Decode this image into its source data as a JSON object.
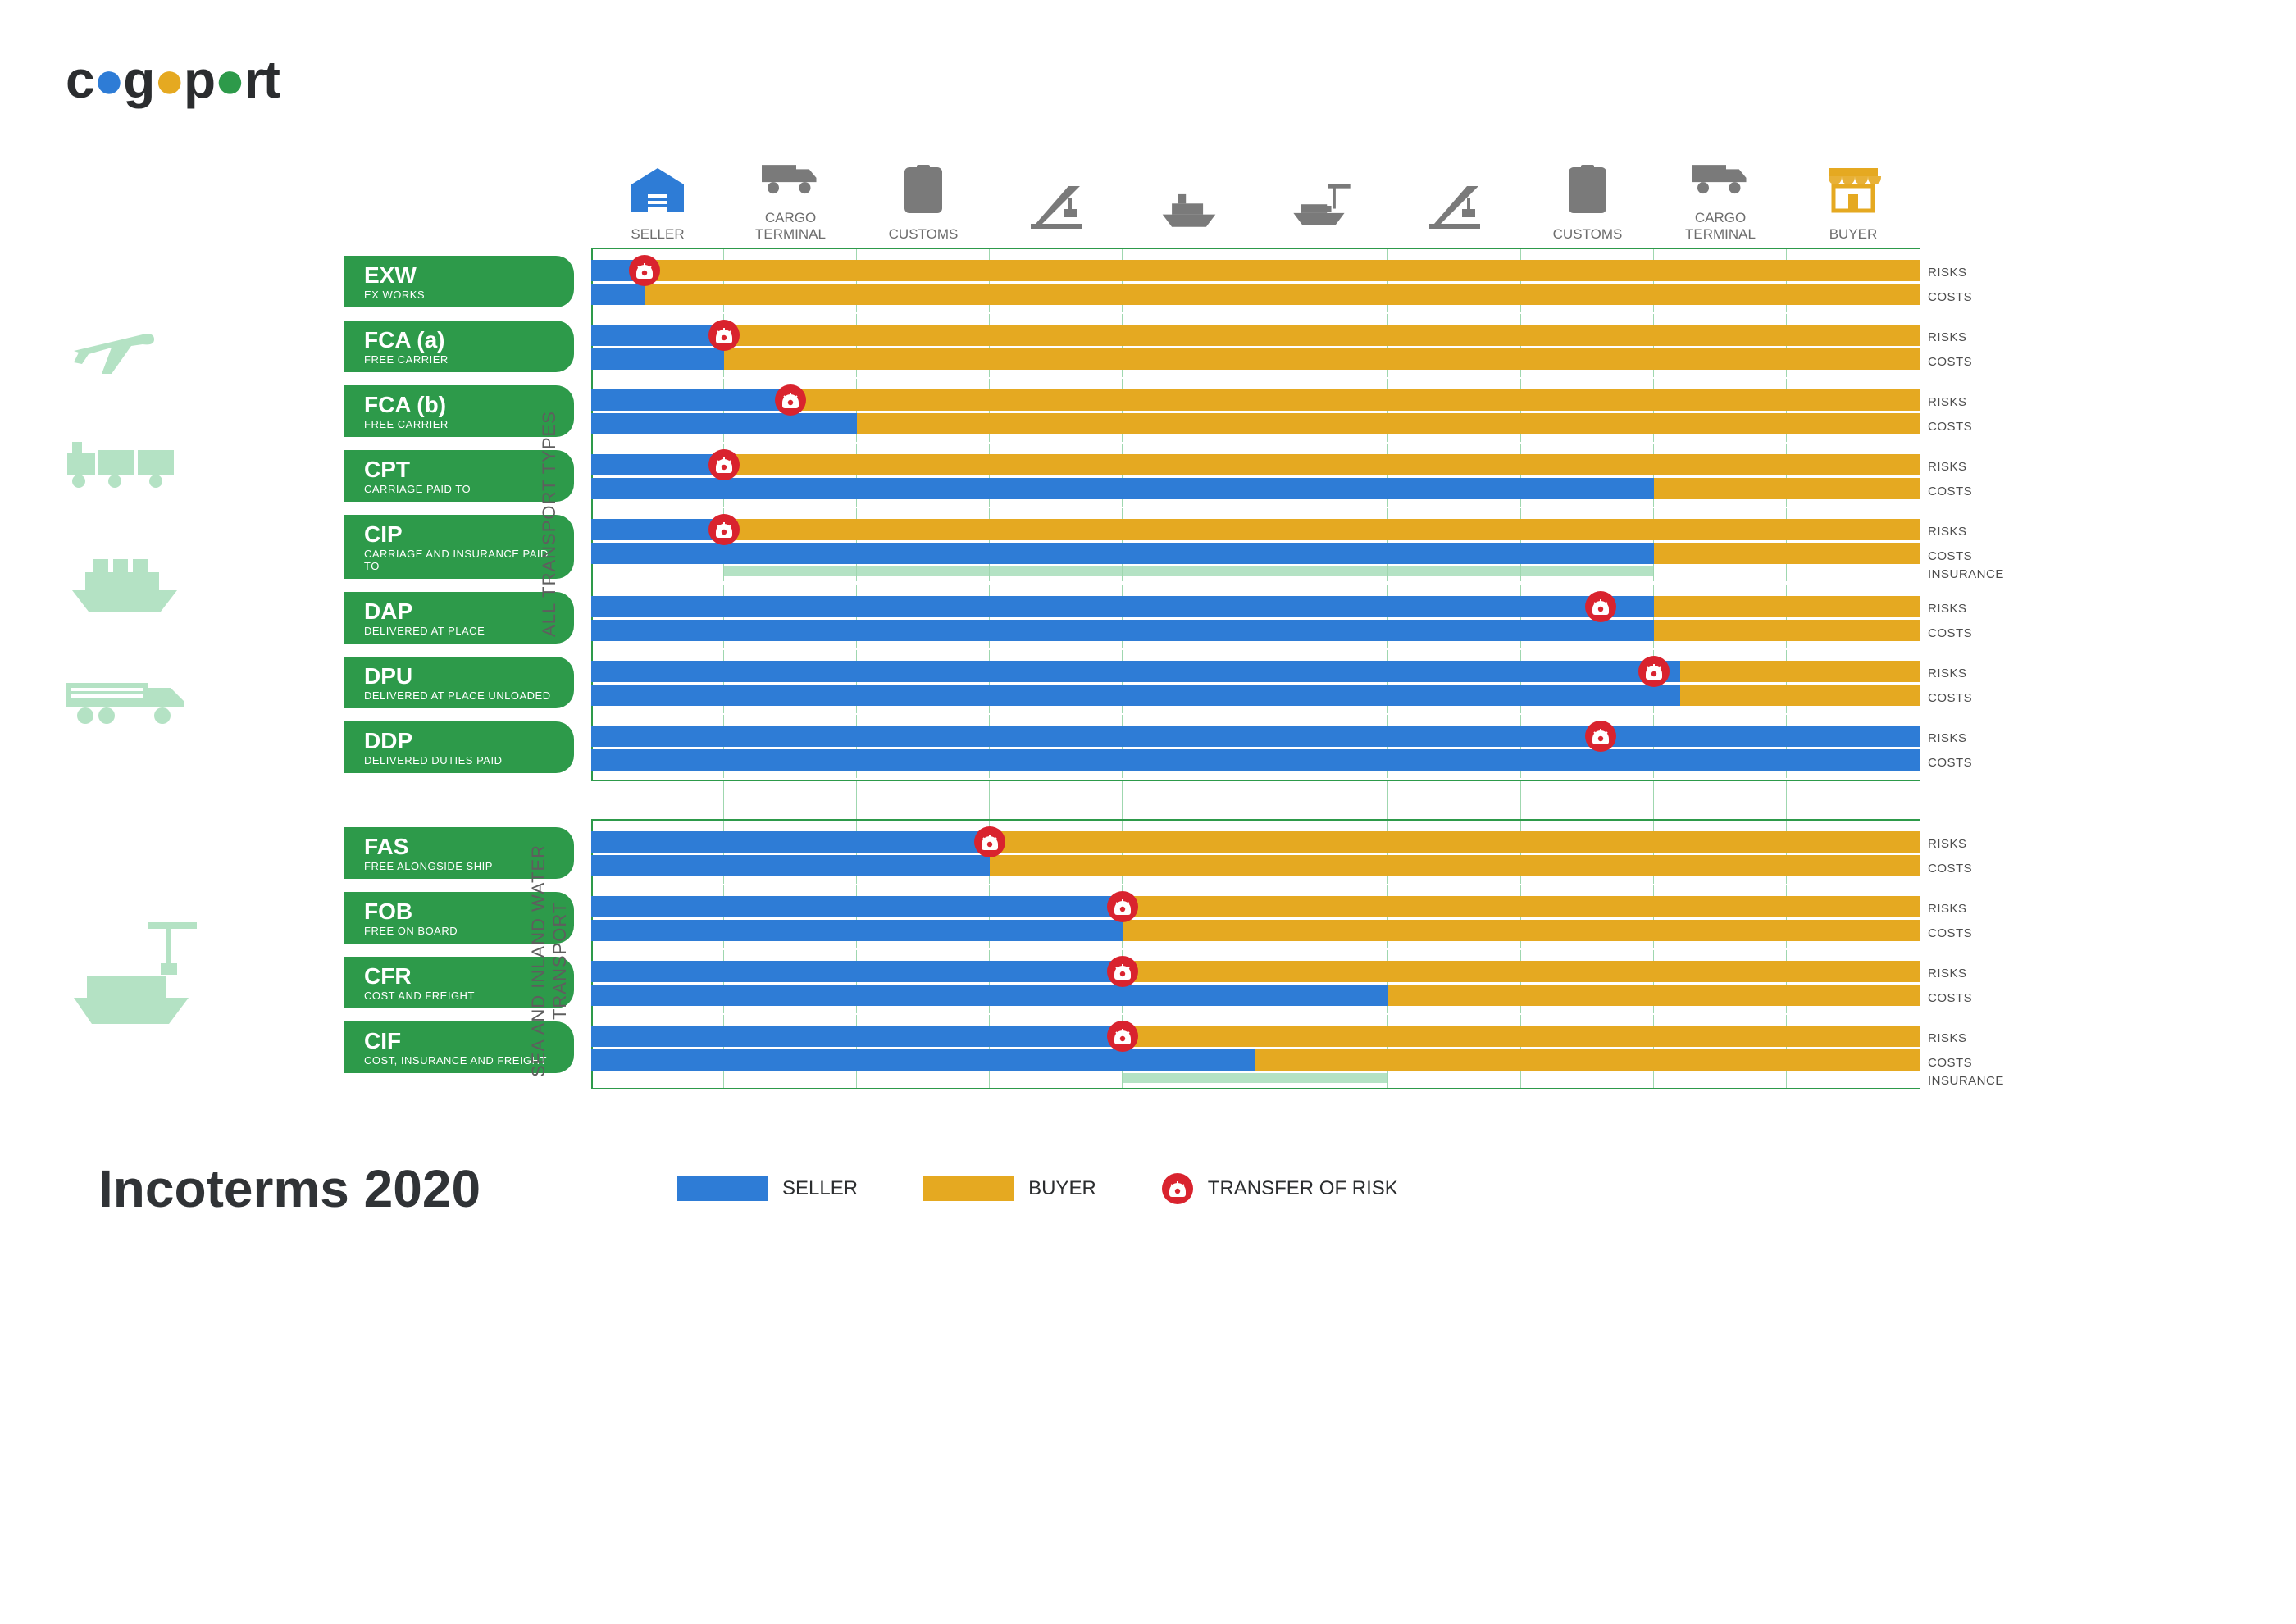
{
  "brand": {
    "prefix": "c",
    "mid1": "g",
    "mid2": "p",
    "suffix": "rt"
  },
  "colors": {
    "seller": "#2e7cd6",
    "buyer": "#e5a921",
    "green": "#2d9a4a",
    "badge": "#2d9a4a",
    "risk": "#d9232e",
    "insurance": "#b4e2c4",
    "iconGrey": "#7a7a7a",
    "iconLight": "#b4e2c4"
  },
  "header_stages": [
    {
      "id": "seller",
      "label": "SELLER",
      "color": "#2e7cd6"
    },
    {
      "id": "cargo-terminal-1",
      "label": "CARGO\nTERMINAL",
      "color": "#7a7a7a"
    },
    {
      "id": "customs-1",
      "label": "CUSTOMS",
      "color": "#7a7a7a"
    },
    {
      "id": "port-crane-1",
      "label": "",
      "color": "#7a7a7a"
    },
    {
      "id": "ship-depart",
      "label": "",
      "color": "#7a7a7a"
    },
    {
      "id": "ship-arrive",
      "label": "",
      "color": "#7a7a7a"
    },
    {
      "id": "port-crane-2",
      "label": "",
      "color": "#7a7a7a"
    },
    {
      "id": "customs-2",
      "label": "CUSTOMS",
      "color": "#7a7a7a"
    },
    {
      "id": "cargo-terminal-2",
      "label": "CARGO\nTERMINAL",
      "color": "#7a7a7a"
    },
    {
      "id": "buyer",
      "label": "BUYER",
      "color": "#e5a921"
    }
  ],
  "sections": [
    {
      "id": "all-transport",
      "label": "ALL TRANSPORT TYPES",
      "side_icons": [
        "plane",
        "train",
        "ship",
        "truck"
      ],
      "terms": [
        {
          "code": "EXW",
          "name": "EX WORKS",
          "risks": {
            "seller_pct": 4,
            "risk_pct": 4
          },
          "costs": {
            "seller_pct": 4
          }
        },
        {
          "code": "FCA (a)",
          "name": "FREE CARRIER",
          "risks": {
            "seller_pct": 10,
            "risk_pct": 10
          },
          "costs": {
            "seller_pct": 10
          }
        },
        {
          "code": "FCA (b)",
          "name": "FREE CARRIER",
          "risks": {
            "seller_pct": 15,
            "risk_pct": 15
          },
          "costs": {
            "seller_pct": 20
          }
        },
        {
          "code": "CPT",
          "name": "CARRIAGE PAID TO",
          "risks": {
            "seller_pct": 10,
            "risk_pct": 10
          },
          "costs": {
            "seller_pct": 80
          }
        },
        {
          "code": "CIP",
          "name": "CARRIAGE AND INSURANCE PAID TO",
          "risks": {
            "seller_pct": 10,
            "risk_pct": 10
          },
          "costs": {
            "seller_pct": 80
          },
          "insurance": {
            "start_pct": 10,
            "end_pct": 80
          }
        },
        {
          "code": "DAP",
          "name": "DELIVERED AT PLACE",
          "risks": {
            "seller_pct": 80,
            "risk_pct": 76
          },
          "costs": {
            "seller_pct": 80
          }
        },
        {
          "code": "DPU",
          "name": "DELIVERED AT PLACE UNLOADED",
          "risks": {
            "seller_pct": 82,
            "risk_pct": 80
          },
          "costs": {
            "seller_pct": 82
          }
        },
        {
          "code": "DDP",
          "name": "DELIVERED DUTIES PAID",
          "risks": {
            "seller_pct": 100,
            "risk_pct": 76
          },
          "costs": {
            "seller_pct": 100
          }
        }
      ]
    },
    {
      "id": "sea-transport",
      "label": "SEA AND INLAND WATER\nTRANSPORT",
      "side_icons": [
        "port-ship"
      ],
      "terms": [
        {
          "code": "FAS",
          "name": "FREE ALONGSIDE SHIP",
          "risks": {
            "seller_pct": 30,
            "risk_pct": 30
          },
          "costs": {
            "seller_pct": 30
          }
        },
        {
          "code": "FOB",
          "name": "FREE ON BOARD",
          "risks": {
            "seller_pct": 40,
            "risk_pct": 40
          },
          "costs": {
            "seller_pct": 40
          }
        },
        {
          "code": "CFR",
          "name": "COST AND FREIGHT",
          "risks": {
            "seller_pct": 40,
            "risk_pct": 40
          },
          "costs": {
            "seller_pct": 60
          }
        },
        {
          "code": "CIF",
          "name": "COST, INSURANCE AND FREIGHT",
          "risks": {
            "seller_pct": 40,
            "risk_pct": 40
          },
          "costs": {
            "seller_pct": 50
          },
          "insurance": {
            "start_pct": 40,
            "end_pct": 60
          }
        }
      ]
    }
  ],
  "row_labels": {
    "risks": "RISKS",
    "costs": "COSTS",
    "insurance": "INSURANCE"
  },
  "footer": {
    "title": "Incoterms 2020",
    "legend": [
      {
        "swatch": "#2e7cd6",
        "label": "SELLER"
      },
      {
        "swatch": "#e5a921",
        "label": "BUYER"
      },
      {
        "risk_icon": true,
        "label": "TRANSFER OF RISK"
      }
    ]
  }
}
